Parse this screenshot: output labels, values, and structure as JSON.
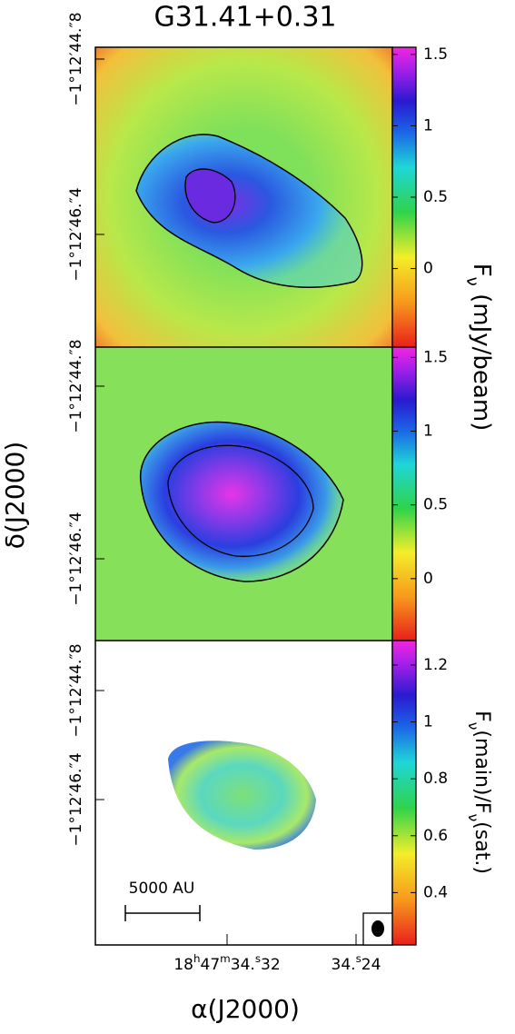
{
  "title": "G31.41+0.31",
  "x_axis_label": "α(J2000)",
  "y_axis_label": "δ(J2000)",
  "x_tick_labels": [
    [
      "18",
      "h",
      "47",
      "m",
      "34.",
      "s",
      "32"
    ],
    [
      "34.",
      "s",
      "24"
    ]
  ],
  "scale_bar_label": "5000 AU",
  "colorbar_label_top": [
    "F",
    "ν",
    " (mJy/beam)"
  ],
  "colorbar_label_bottom": [
    "F",
    "ν",
    "(main)/F",
    "ν",
    "(sat.)"
  ],
  "chart_data": [
    {
      "type": "image",
      "ytick_labels": [
        "−1°12′44.″8",
        "−1°12′46.″4"
      ],
      "clim": [
        -0.55,
        1.55
      ],
      "cticks": [
        0,
        0.5,
        1,
        1.5
      ]
    },
    {
      "type": "image",
      "ytick_labels": [
        "−1°12′44.″8",
        "−1°12′46.″4"
      ],
      "clim": [
        -0.42,
        1.57
      ],
      "cticks": [
        0,
        0.5,
        1,
        1.5
      ]
    },
    {
      "type": "image",
      "ytick_labels": [
        "−1°12′44.″8",
        "−1°12′46.″4"
      ],
      "clim": [
        0.216,
        1.286
      ],
      "cticks": [
        0.4,
        0.6,
        0.8,
        1,
        1.2
      ]
    }
  ]
}
